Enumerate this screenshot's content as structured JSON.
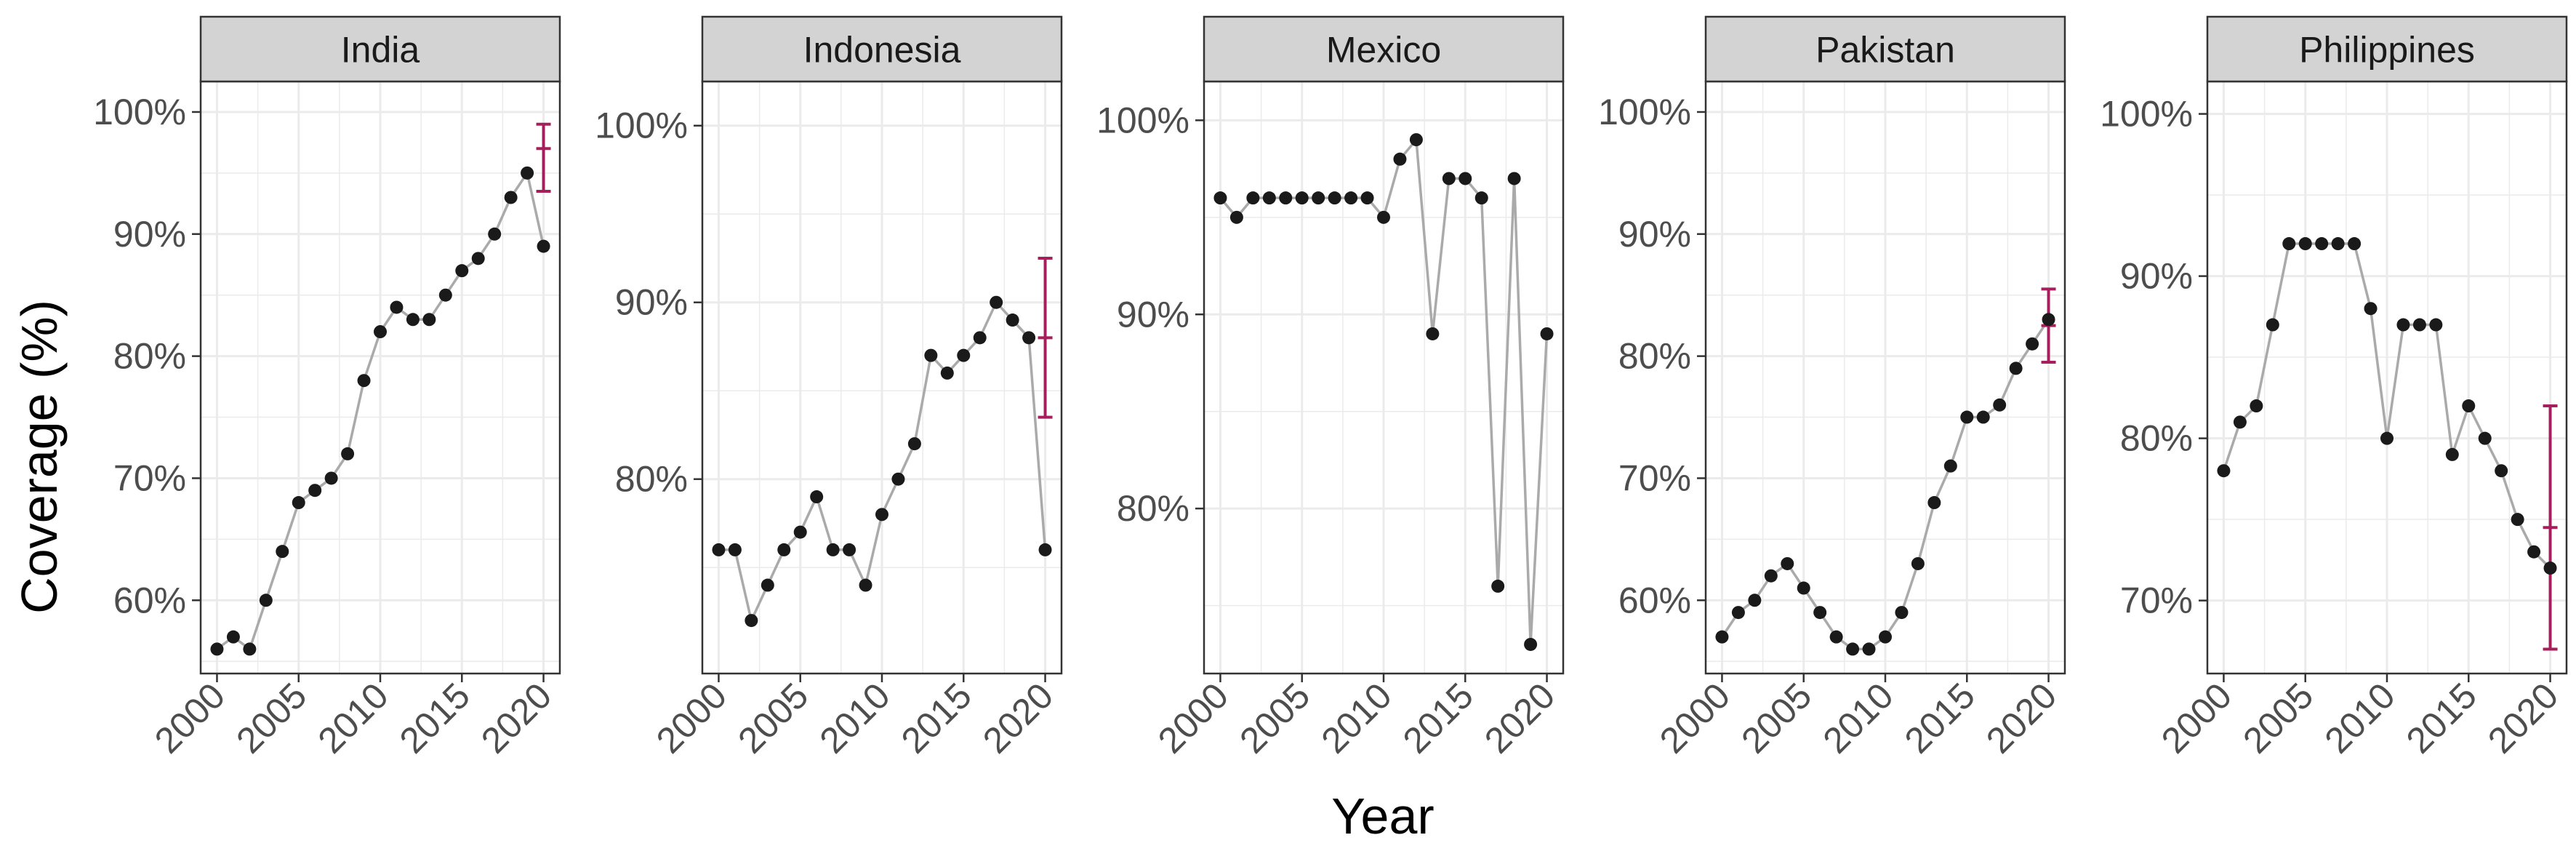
{
  "figure": {
    "xlabel": "Year",
    "ylabel": "Coverage (%)"
  },
  "colors": {
    "line": "#aaaaaa",
    "point": "#1a1a1a",
    "errorbar": "#a51f5c",
    "strip_fill": "#d3d3d3",
    "grid": "#ebebeb",
    "panel_border": "#333333"
  },
  "chart_data": [
    {
      "type": "line",
      "facet": "India",
      "x": [
        2000,
        2001,
        2002,
        2003,
        2004,
        2005,
        2006,
        2007,
        2008,
        2009,
        2010,
        2011,
        2012,
        2013,
        2014,
        2015,
        2016,
        2017,
        2018,
        2019,
        2020
      ],
      "y": [
        56,
        57,
        56,
        60,
        64,
        68,
        69,
        70,
        72,
        78,
        82,
        84,
        83,
        83,
        85,
        87,
        88,
        90,
        93,
        95,
        89
      ],
      "errorbar": {
        "x": 2020,
        "y": 97,
        "ymin": 93.5,
        "ymax": 99
      },
      "ylim": [
        54,
        102.5
      ],
      "yticks": [
        60,
        70,
        80,
        90,
        100
      ],
      "ytick_labels": [
        "60%",
        "70%",
        "80%",
        "90%",
        "100%"
      ],
      "xticks": [
        2000,
        2005,
        2010,
        2015,
        2020
      ],
      "xtick_labels": [
        "2000",
        "2005",
        "2010",
        "2015",
        "2020"
      ]
    },
    {
      "type": "line",
      "facet": "Indonesia",
      "x": [
        2000,
        2001,
        2002,
        2003,
        2004,
        2005,
        2006,
        2007,
        2008,
        2009,
        2010,
        2011,
        2012,
        2013,
        2014,
        2015,
        2016,
        2017,
        2018,
        2019,
        2020
      ],
      "y": [
        76,
        76,
        72,
        74,
        76,
        77,
        79,
        76,
        76,
        74,
        78,
        80,
        82,
        87,
        86,
        87,
        88,
        90,
        89,
        88,
        76
      ],
      "errorbar": {
        "x": 2020,
        "y": 88,
        "ymin": 83.5,
        "ymax": 92.5
      },
      "ylim": [
        69,
        102.5
      ],
      "yticks": [
        80,
        90,
        100
      ],
      "ytick_labels": [
        "80%",
        "90%",
        "100%"
      ],
      "xticks": [
        2000,
        2005,
        2010,
        2015,
        2020
      ],
      "xtick_labels": [
        "2000",
        "2005",
        "2010",
        "2015",
        "2020"
      ]
    },
    {
      "type": "line",
      "facet": "Mexico",
      "x": [
        2000,
        2001,
        2002,
        2003,
        2004,
        2005,
        2006,
        2007,
        2008,
        2009,
        2010,
        2011,
        2012,
        2013,
        2014,
        2015,
        2016,
        2017,
        2018,
        2019,
        2020
      ],
      "y": [
        96,
        95,
        96,
        96,
        96,
        96,
        96,
        96,
        96,
        96,
        95,
        98,
        99,
        89,
        97,
        97,
        96,
        76,
        97,
        73,
        89
      ],
      "errorbar": null,
      "ylim": [
        71.5,
        102
      ],
      "yticks": [
        80,
        90,
        100
      ],
      "ytick_labels": [
        "80%",
        "90%",
        "100%"
      ],
      "xticks": [
        2000,
        2005,
        2010,
        2015,
        2020
      ],
      "xtick_labels": [
        "2000",
        "2005",
        "2010",
        "2015",
        "2020"
      ]
    },
    {
      "type": "line",
      "facet": "Pakistan",
      "x": [
        2000,
        2001,
        2002,
        2003,
        2004,
        2005,
        2006,
        2007,
        2008,
        2009,
        2010,
        2011,
        2012,
        2013,
        2014,
        2015,
        2016,
        2017,
        2018,
        2019,
        2020
      ],
      "y": [
        57,
        59,
        60,
        62,
        63,
        61,
        59,
        57,
        56,
        56,
        57,
        59,
        63,
        68,
        71,
        75,
        75,
        76,
        79,
        81,
        83
      ],
      "errorbar": {
        "x": 2020,
        "y": 82.5,
        "ymin": 79.5,
        "ymax": 85.5
      },
      "ylim": [
        54,
        102.5
      ],
      "yticks": [
        60,
        70,
        80,
        90,
        100
      ],
      "ytick_labels": [
        "60%",
        "70%",
        "80%",
        "90%",
        "100%"
      ],
      "xticks": [
        2000,
        2005,
        2010,
        2015,
        2020
      ],
      "xtick_labels": [
        "2000",
        "2005",
        "2010",
        "2015",
        "2020"
      ]
    },
    {
      "type": "line",
      "facet": "Philippines",
      "x": [
        2000,
        2001,
        2002,
        2003,
        2004,
        2005,
        2006,
        2007,
        2008,
        2009,
        2010,
        2011,
        2012,
        2013,
        2014,
        2015,
        2016,
        2017,
        2018,
        2019,
        2020
      ],
      "y": [
        78,
        81,
        82,
        87,
        92,
        92,
        92,
        92,
        92,
        88,
        80,
        87,
        87,
        87,
        79,
        82,
        80,
        78,
        75,
        73,
        72
      ],
      "errorbar": {
        "x": 2020,
        "y": 74.5,
        "ymin": 67,
        "ymax": 82
      },
      "ylim": [
        65.5,
        102
      ],
      "yticks": [
        70,
        80,
        90,
        100
      ],
      "ytick_labels": [
        "70%",
        "80%",
        "90%",
        "100%"
      ],
      "xticks": [
        2000,
        2005,
        2010,
        2015,
        2020
      ],
      "xtick_labels": [
        "2000",
        "2005",
        "2010",
        "2015",
        "2020"
      ]
    }
  ]
}
